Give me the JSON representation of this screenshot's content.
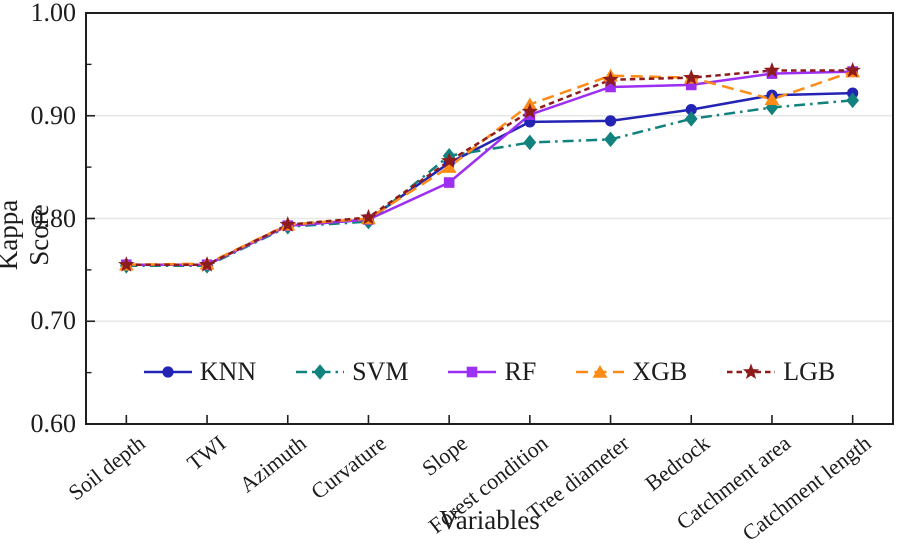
{
  "figure": {
    "background": "#ffffff",
    "text_color": "#1c1c1c",
    "axis_color": "#1f1f1f",
    "grid_color": "#e7e7e7"
  },
  "chart_data": {
    "type": "line",
    "title": "",
    "xlabel": "Variables",
    "ylabel": "Kappa Score",
    "categories": [
      "Soil depth",
      "TWI",
      "Azimuth",
      "Curvature",
      "Slope",
      "Forest condition",
      "Tree diameter",
      "Bedrock",
      "Catchment area",
      "Catchment length"
    ],
    "series": [
      {
        "name": "KNN",
        "color": "#2323b4",
        "marker": "circle",
        "line_style": "solid",
        "values": [
          0.755,
          0.755,
          0.793,
          0.799,
          0.854,
          0.894,
          0.895,
          0.906,
          0.92,
          0.922
        ]
      },
      {
        "name": "SVM",
        "color": "#11827d",
        "marker": "diamond",
        "line_style": "dashdot",
        "values": [
          0.754,
          0.754,
          0.792,
          0.797,
          0.861,
          0.874,
          0.877,
          0.897,
          0.908,
          0.915
        ]
      },
      {
        "name": "RF",
        "color": "#9c2ff2",
        "marker": "square",
        "line_style": "solid",
        "values": [
          0.755,
          0.755,
          0.793,
          0.799,
          0.835,
          0.901,
          0.928,
          0.93,
          0.941,
          0.943
        ]
      },
      {
        "name": "XGB",
        "color": "#ff8b17",
        "marker": "triangle",
        "line_style": "dash",
        "values": [
          0.755,
          0.756,
          0.794,
          0.8,
          0.85,
          0.911,
          0.939,
          0.937,
          0.916,
          0.943
        ]
      },
      {
        "name": "LGB",
        "color": "#8e1c1c",
        "marker": "star",
        "line_style": "shortdash",
        "values": [
          0.755,
          0.755,
          0.794,
          0.801,
          0.856,
          0.904,
          0.935,
          0.937,
          0.944,
          0.944
        ]
      }
    ],
    "ylim": [
      0.6,
      1.0
    ],
    "yticks": [
      0.6,
      0.7,
      0.8,
      0.9,
      1.0
    ],
    "ytick_labels": [
      "0.60",
      "0.70",
      "0.80",
      "0.90",
      "1.00"
    ],
    "minor_yticks": [
      0.65,
      0.75,
      0.85,
      0.95
    ],
    "gridline_y_values": [
      0.7,
      0.8,
      0.9
    ],
    "grid": "horizontal-major-only",
    "legend_position": "inside-lower-center"
  }
}
